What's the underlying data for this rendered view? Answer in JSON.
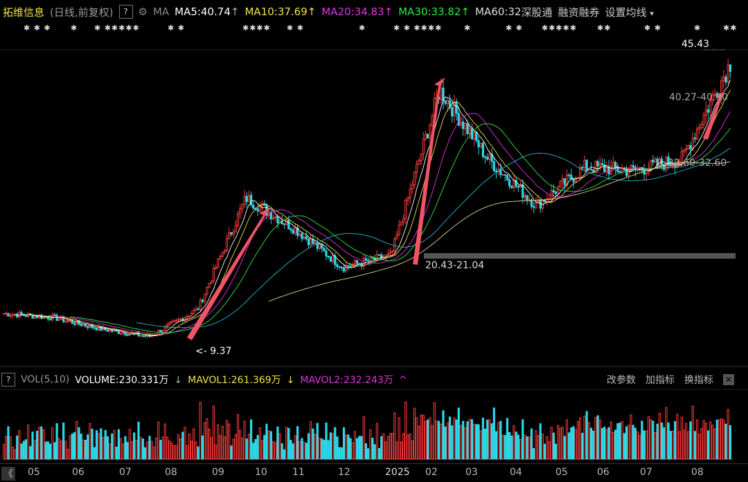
{
  "header": {
    "stock_name": "拓维信息",
    "mode": "(日线,前复权)",
    "help": "?",
    "ma_label": "MA",
    "ma5": "MA5:40.74",
    "ma10": "MA10:37.69",
    "ma20": "MA20:34.83",
    "ma30": "MA30:33.82",
    "ma60": "MA60:32",
    "sgt": "深股通",
    "rzrq": "融资融券",
    "settings": "设置均线",
    "up_arrow": "↑",
    "dropdown": "▾",
    "colors": {
      "ma5": "#ffffff",
      "ma10": "#f2e24a",
      "ma20": "#e034e0",
      "ma30": "#2ee84a",
      "ma60": "#dddddd"
    }
  },
  "price_labels": {
    "high": "45.43",
    "low": "9.37",
    "zone_top": "40.27-40.30",
    "zone_mid": "32.60-32.60",
    "zone_low": "20.43-21.04"
  },
  "volume_panel": {
    "help": "?",
    "vol_label": "VOL(5,10)",
    "volume": "VOLUME:230.331万",
    "mavol1": "MAVOL1:261.369万",
    "mavol2": "MAVOL2:232.243万",
    "down_arrow": "↓",
    "up_arrow": "^",
    "btn_params": "改参数",
    "btn_add": "加指标",
    "btn_switch": "换指标",
    "close": "✕"
  },
  "axis": {
    "nav": "《",
    "months": [
      "05",
      "06",
      "07",
      "08",
      "09",
      "10",
      "11",
      "12",
      "2025",
      "02",
      "03",
      "04",
      "05",
      "06",
      "07",
      "08"
    ]
  },
  "marks": [
    "✱ ✱ ✱",
    "✱",
    "✱ ✱✱✱✱✱",
    "✱ ✱",
    "✱✱✱✱",
    "✱ ✱",
    "✱",
    "✱ ✱ ✱✱✱✱",
    "✱",
    "✱ ✱",
    "✱✱✱✱✱",
    "✱✱",
    "✱ ✱",
    "✱",
    "✱✱"
  ],
  "chart_data": {
    "type": "candlestick",
    "price_range": [
      9.37,
      45.43
    ],
    "anchors": [
      {
        "month": "05",
        "close": 13.0
      },
      {
        "month": "06",
        "close": 12.5
      },
      {
        "month": "07",
        "close": 11.0
      },
      {
        "month": "08",
        "close": 10.0
      },
      {
        "month": "09",
        "close": 13.5
      },
      {
        "month": "10",
        "close": 28.0
      },
      {
        "month": "11",
        "close": 24.0
      },
      {
        "month": "12",
        "close": 19.0
      },
      {
        "month": "2025",
        "close": 20.5
      },
      {
        "month": "02",
        "close": 42.0
      },
      {
        "month": "03",
        "close": 33.0
      },
      {
        "month": "04",
        "close": 27.0
      },
      {
        "month": "05",
        "close": 32.0
      },
      {
        "month": "06",
        "close": 31.5
      },
      {
        "month": "07",
        "close": 33.0
      },
      {
        "month": "08",
        "close": 45.43
      }
    ]
  }
}
